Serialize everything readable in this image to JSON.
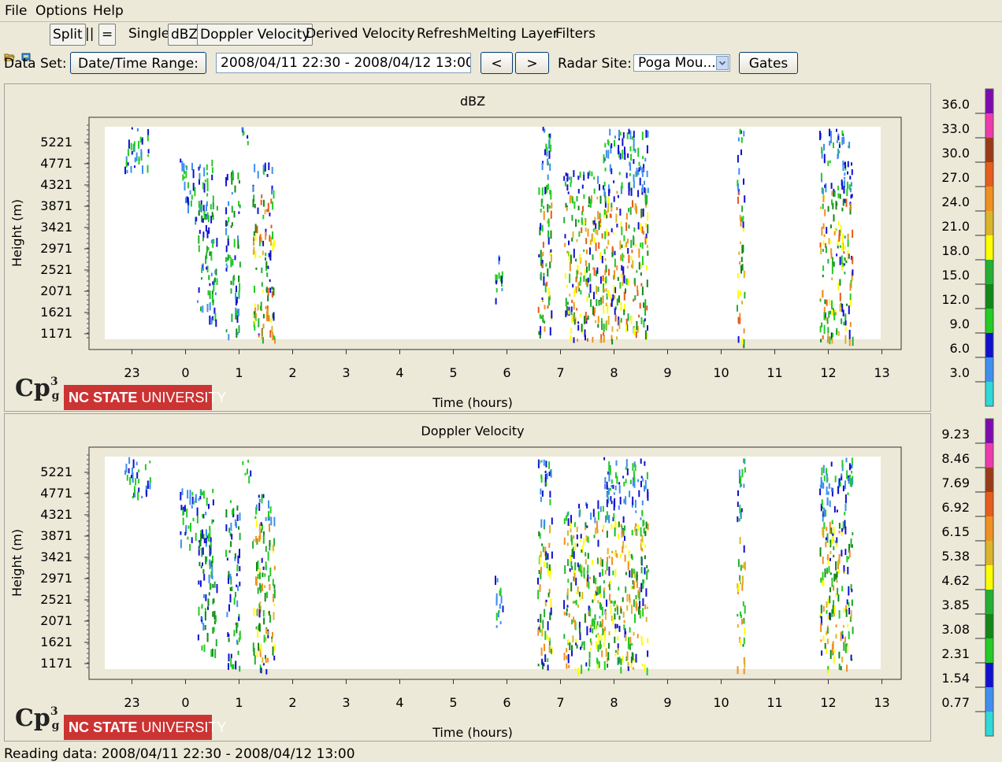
{
  "menu": {
    "file": "File",
    "options": "Options",
    "help": "Help"
  },
  "toolbar": {
    "split": "Split",
    "parallel": "||",
    "equals": "=",
    "single": "Single",
    "dbz": "dBZ",
    "doppler": "Doppler Velocity",
    "derived": "Derived Velocity",
    "refresh": "Refresh",
    "melting": "Melting Layer",
    "filters": "Filters"
  },
  "dataset": {
    "label": "Data Set:",
    "range_button": "Date/Time Range:",
    "range_value": "2008/04/11 22:30 - 2008/04/12 13:00",
    "prev": "<",
    "next": ">",
    "site_label": "Radar Site:",
    "site_value": "Poga Mou...",
    "gates": "Gates"
  },
  "logo": {
    "cp3": "Cp",
    "cp3_sup": "3",
    "cp3_sub": "g",
    "ncsu_bold": "NC STATE",
    "ncsu_light": " UNIVERSITY"
  },
  "charts": [
    {
      "id": "dbz",
      "title": "dBZ",
      "xlabel": "Time (hours)",
      "ylabel": "Height (m)",
      "xticks": [
        "23",
        "0",
        "1",
        "2",
        "3",
        "4",
        "5",
        "6",
        "7",
        "8",
        "9",
        "10",
        "11",
        "12",
        "13"
      ],
      "yticks": [
        "5221",
        "4771",
        "4321",
        "3871",
        "3421",
        "2971",
        "2521",
        "2071",
        "1621",
        "1171"
      ],
      "colorbar_labels": [
        "36.0",
        "33.0",
        "30.0",
        "27.0",
        "24.0",
        "21.0",
        "18.0",
        "15.0",
        "12.0",
        "9.0",
        "6.0",
        "3.0"
      ]
    },
    {
      "id": "doppler",
      "title": "Doppler Velocity",
      "xlabel": "Time (hours)",
      "ylabel": "Height (m)",
      "xticks": [
        "23",
        "0",
        "1",
        "2",
        "3",
        "4",
        "5",
        "6",
        "7",
        "8",
        "9",
        "10",
        "11",
        "12",
        "13"
      ],
      "yticks": [
        "5221",
        "4771",
        "4321",
        "3871",
        "3421",
        "2971",
        "2521",
        "2071",
        "1621",
        "1171"
      ],
      "colorbar_labels": [
        "9.23",
        "8.46",
        "7.69",
        "6.92",
        "6.15",
        "5.38",
        "4.62",
        "3.85",
        "3.08",
        "2.31",
        "1.54",
        "0.77"
      ]
    }
  ],
  "colors": {
    "scale": [
      "#7f0bb0",
      "#ef3aad",
      "#9b3a16",
      "#e65c1a",
      "#f09020",
      "#dcb42a",
      "#ffff00",
      "#22b032",
      "#118818",
      "#22cc22",
      "#1010d0",
      "#3e8ef0",
      "#30d8d8"
    ]
  },
  "status": "Reading data: 2008/04/11 22:30 - 2008/04/12 13:00"
}
